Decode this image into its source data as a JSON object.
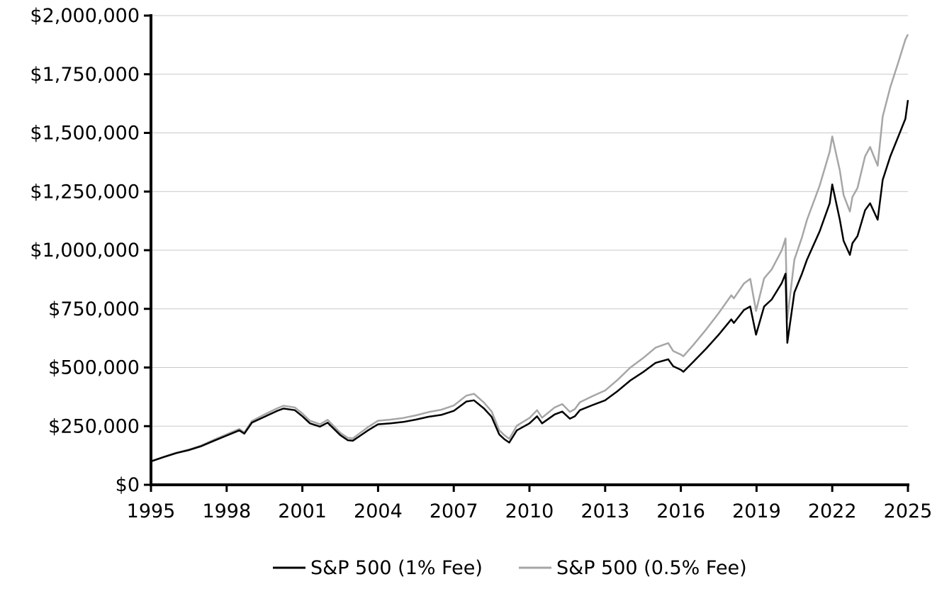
{
  "chart_data": {
    "type": "line",
    "title": "",
    "xlabel": "",
    "ylabel": "",
    "xlim": [
      1995,
      2025
    ],
    "ylim": [
      0,
      2000000
    ],
    "grid": true,
    "legend_position": "bottom",
    "x_ticks": [
      1995,
      1998,
      2001,
      2004,
      2007,
      2010,
      2013,
      2016,
      2019,
      2022,
      2025
    ],
    "x_tick_labels": [
      "1995",
      "1998",
      "2001",
      "2004",
      "2007",
      "2010",
      "2013",
      "2016",
      "2019",
      "2022",
      "2025"
    ],
    "y_ticks": [
      0,
      250000,
      500000,
      750000,
      1000000,
      1250000,
      1500000,
      1750000,
      2000000
    ],
    "y_tick_labels": [
      "$0",
      "$250,000",
      "$500,000",
      "$750,000",
      "$1,000,000",
      "$1,250,000",
      "$1,500,000",
      "$1,750,000",
      "$2,000,000"
    ],
    "series": [
      {
        "name": "S&P 500 (1% Fee)",
        "color": "#000000",
        "x": [
          1995.0,
          1995.5,
          1996.0,
          1996.5,
          1997.0,
          1997.5,
          1998.0,
          1998.5,
          1998.7,
          1999.0,
          1999.5,
          2000.0,
          2000.25,
          2000.7,
          2001.0,
          2001.3,
          2001.7,
          2002.0,
          2002.5,
          2002.8,
          2003.0,
          2003.3,
          2003.6,
          2004.0,
          2004.5,
          2005.0,
          2005.5,
          2006.0,
          2006.5,
          2007.0,
          2007.5,
          2007.8,
          2008.2,
          2008.5,
          2008.8,
          2009.0,
          2009.2,
          2009.5,
          2010.0,
          2010.3,
          2010.5,
          2011.0,
          2011.3,
          2011.6,
          2011.8,
          2012.0,
          2012.5,
          2013.0,
          2013.5,
          2014.0,
          2014.5,
          2015.0,
          2015.5,
          2015.7,
          2016.0,
          2016.1,
          2016.5,
          2017.0,
          2017.5,
          2018.0,
          2018.1,
          2018.5,
          2018.75,
          2018.98,
          2019.3,
          2019.6,
          2020.0,
          2020.15,
          2020.22,
          2020.5,
          2020.8,
          2021.0,
          2021.5,
          2021.9,
          2022.0,
          2022.3,
          2022.45,
          2022.7,
          2022.8,
          2023.0,
          2023.3,
          2023.5,
          2023.8,
          2024.0,
          2024.3,
          2024.6,
          2024.9,
          2025.0
        ],
        "values": [
          100000,
          118000,
          135000,
          148000,
          165000,
          188000,
          210000,
          232000,
          218000,
          265000,
          290000,
          315000,
          325000,
          318000,
          292000,
          262000,
          248000,
          265000,
          212000,
          190000,
          188000,
          210000,
          232000,
          258000,
          262000,
          268000,
          278000,
          290000,
          298000,
          315000,
          355000,
          360000,
          325000,
          290000,
          215000,
          195000,
          180000,
          232000,
          262000,
          292000,
          262000,
          300000,
          312000,
          282000,
          292000,
          318000,
          340000,
          360000,
          400000,
          445000,
          480000,
          520000,
          535000,
          505000,
          490000,
          482000,
          525000,
          580000,
          640000,
          705000,
          690000,
          745000,
          760000,
          640000,
          760000,
          790000,
          860000,
          900000,
          605000,
          820000,
          900000,
          960000,
          1080000,
          1200000,
          1280000,
          1130000,
          1040000,
          980000,
          1030000,
          1060000,
          1170000,
          1200000,
          1130000,
          1300000,
          1400000,
          1480000,
          1560000,
          1640000
        ]
      },
      {
        "name": "S&P 500 (0.5% Fee)",
        "color": "#a6a6a6",
        "x": [
          1995.0,
          1995.5,
          1996.0,
          1996.5,
          1997.0,
          1997.5,
          1998.0,
          1998.5,
          1998.7,
          1999.0,
          1999.5,
          2000.0,
          2000.25,
          2000.7,
          2001.0,
          2001.3,
          2001.7,
          2002.0,
          2002.5,
          2002.8,
          2003.0,
          2003.3,
          2003.6,
          2004.0,
          2004.5,
          2005.0,
          2005.5,
          2006.0,
          2006.5,
          2007.0,
          2007.5,
          2007.8,
          2008.2,
          2008.5,
          2008.8,
          2009.0,
          2009.2,
          2009.5,
          2010.0,
          2010.3,
          2010.5,
          2011.0,
          2011.3,
          2011.6,
          2011.8,
          2012.0,
          2012.5,
          2013.0,
          2013.5,
          2014.0,
          2014.5,
          2015.0,
          2015.5,
          2015.7,
          2016.0,
          2016.1,
          2016.5,
          2017.0,
          2017.5,
          2018.0,
          2018.1,
          2018.5,
          2018.75,
          2018.98,
          2019.3,
          2019.6,
          2020.0,
          2020.15,
          2020.22,
          2020.5,
          2020.8,
          2021.0,
          2021.5,
          2021.9,
          2022.0,
          2022.3,
          2022.45,
          2022.7,
          2022.8,
          2023.0,
          2023.3,
          2023.5,
          2023.8,
          2024.0,
          2024.3,
          2024.6,
          2024.9,
          2025.0
        ],
        "values": [
          100000,
          119000,
          137000,
          150000,
          168000,
          192000,
          215000,
          238000,
          223000,
          272000,
          300000,
          326000,
          337000,
          330000,
          304000,
          273000,
          258000,
          277000,
          222000,
          200000,
          198000,
          222000,
          246000,
          273000,
          278000,
          285000,
          296000,
          310000,
          320000,
          338000,
          380000,
          388000,
          350000,
          313000,
          233000,
          212000,
          196000,
          252000,
          285000,
          318000,
          286000,
          330000,
          344000,
          311000,
          323000,
          352000,
          378000,
          402000,
          448000,
          500000,
          540000,
          585000,
          604000,
          570000,
          555000,
          548000,
          597000,
          662000,
          732000,
          808000,
          795000,
          858000,
          878000,
          741000,
          880000,
          918000,
          1000000,
          1050000,
          706000,
          960000,
          1055000,
          1130000,
          1275000,
          1420000,
          1485000,
          1340000,
          1235000,
          1165000,
          1227000,
          1265000,
          1400000,
          1440000,
          1360000,
          1570000,
          1695000,
          1795000,
          1898000,
          1920000
        ]
      }
    ]
  }
}
